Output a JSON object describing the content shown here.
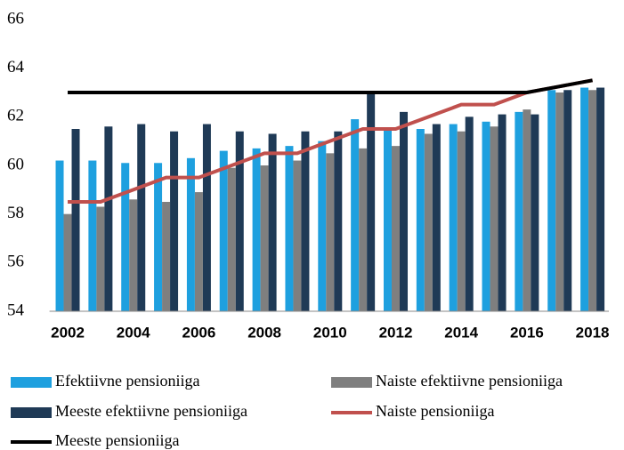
{
  "chart_data": {
    "type": "bar",
    "categories": [
      "2002",
      null,
      "2004",
      null,
      "2006",
      null,
      "2008",
      null,
      "2010",
      null,
      "2012",
      null,
      "2014",
      null,
      "2016",
      null,
      "2018"
    ],
    "series": [
      {
        "name": "Efektiivne pensioniiga",
        "type": "bar",
        "color": "#1ea0df",
        "values": [
          60.2,
          60.2,
          60.1,
          60.1,
          60.3,
          60.6,
          60.7,
          60.8,
          61.0,
          61.9,
          61.5,
          61.5,
          61.7,
          61.8,
          62.2,
          63.1,
          63.2
        ]
      },
      {
        "name": "Naiste efektiivne pensioniiga",
        "type": "bar",
        "color": "#7f7f7f",
        "values": [
          58.0,
          58.3,
          58.6,
          58.5,
          58.9,
          59.9,
          60.0,
          60.2,
          60.5,
          60.7,
          60.8,
          61.3,
          61.4,
          61.6,
          62.3,
          63.0,
          63.1
        ]
      },
      {
        "name": "Meeste efektiivne pensioniiga",
        "type": "bar",
        "color": "#1f3a56",
        "values": [
          61.5,
          61.6,
          61.7,
          61.4,
          61.7,
          61.4,
          61.3,
          61.4,
          61.4,
          63.0,
          62.2,
          61.7,
          62.0,
          62.1,
          62.1,
          63.1,
          63.2
        ]
      },
      {
        "name": "Naiste pensioniiga",
        "type": "line",
        "color": "#c0504d",
        "values": [
          58.5,
          58.5,
          59,
          59.5,
          59.5,
          60,
          60.5,
          60.5,
          61,
          61.5,
          61.5,
          62,
          62.5,
          62.5,
          63,
          63.25,
          63.5
        ]
      },
      {
        "name": "Meeste pensioniiga",
        "type": "line",
        "color": "#000000",
        "values": [
          63,
          63,
          63,
          63,
          63,
          63,
          63,
          63,
          63,
          63,
          63,
          63,
          63,
          63,
          63,
          63.25,
          63.5
        ]
      }
    ],
    "ylim": [
      54,
      66
    ],
    "yticks": [
      54,
      56,
      58,
      60,
      62,
      64,
      66
    ],
    "grid": false,
    "legend": "bottom"
  }
}
